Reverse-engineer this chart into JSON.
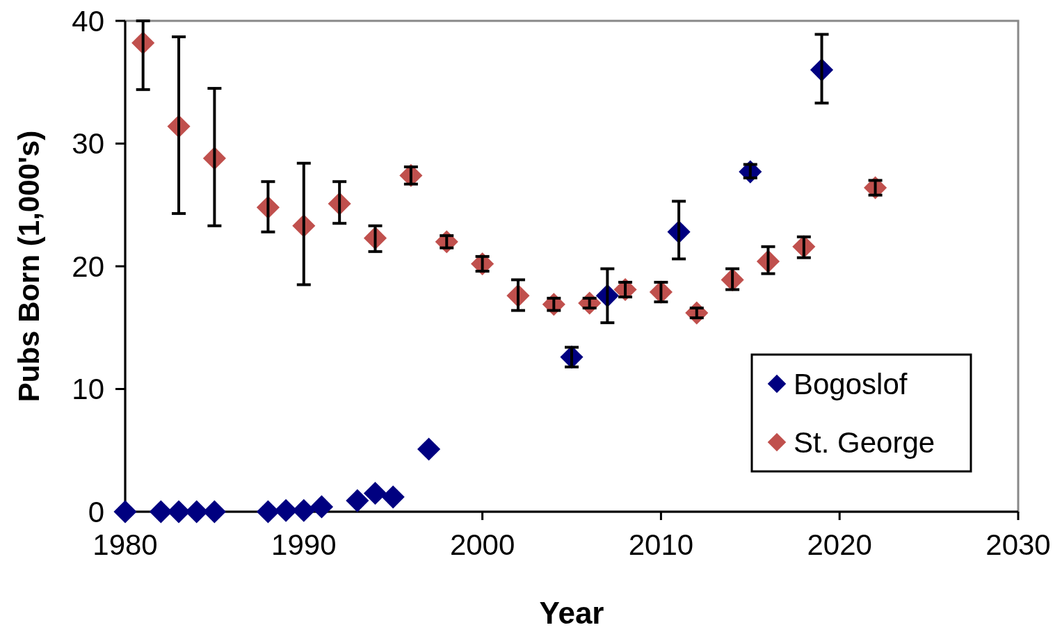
{
  "chart_data": {
    "type": "scatter",
    "xlabel": "Year",
    "ylabel": "Pubs Born (1,000's)",
    "xlim": [
      1980,
      2030
    ],
    "xticks": [
      1980,
      1990,
      2000,
      2010,
      2020,
      2030
    ],
    "ylim": [
      0,
      40
    ],
    "yticks": [
      0,
      10,
      20,
      30,
      40
    ],
    "grid": false,
    "legend": "bottom right",
    "marker": "diamond",
    "series": [
      {
        "name": "Bogoslof",
        "color": "#000080",
        "x": [
          1980,
          1982,
          1983,
          1984,
          1985,
          1988,
          1989,
          1990,
          1991,
          1993,
          1994,
          1995,
          1997,
          2005,
          2007,
          2011,
          2015,
          2019
        ],
        "values": [
          0,
          0,
          0,
          0,
          0,
          0,
          0.1,
          0.1,
          0.4,
          0.9,
          1.5,
          1.2,
          5.1,
          12.6,
          17.6,
          22.8,
          27.7,
          36.0
        ],
        "errors": [
          null,
          null,
          null,
          null,
          null,
          null,
          null,
          null,
          null,
          null,
          null,
          null,
          null,
          [
            11.8,
            13.4
          ],
          [
            15.4,
            19.8
          ],
          [
            20.6,
            25.3
          ],
          [
            27.2,
            28.3
          ],
          [
            33.3,
            38.9
          ]
        ]
      },
      {
        "name": "St. George",
        "color": "#c0504d",
        "x": [
          1981,
          1983,
          1985,
          1988,
          1990,
          1992,
          1994,
          1996,
          1998,
          2000,
          2002,
          2004,
          2006,
          2008,
          2010,
          2012,
          2014,
          2016,
          2018,
          2022
        ],
        "values": [
          38.2,
          31.4,
          28.8,
          24.8,
          23.3,
          25.1,
          22.3,
          27.4,
          22.0,
          20.2,
          17.6,
          16.9,
          17.0,
          18.1,
          17.9,
          16.2,
          18.9,
          20.4,
          21.6,
          26.4
        ],
        "errors": [
          [
            34.4,
            40
          ],
          [
            24.3,
            38.7
          ],
          [
            23.3,
            34.5
          ],
          [
            22.8,
            26.9
          ],
          [
            18.5,
            28.4
          ],
          [
            23.5,
            26.9
          ],
          [
            21.2,
            23.3
          ],
          [
            26.7,
            28.1
          ],
          [
            21.5,
            22.5
          ],
          [
            19.6,
            20.8
          ],
          [
            16.4,
            18.9
          ],
          [
            16.4,
            17.4
          ],
          [
            16.6,
            17.4
          ],
          [
            17.5,
            18.7
          ],
          [
            17.1,
            18.7
          ],
          [
            15.8,
            16.6
          ],
          [
            18.1,
            19.8
          ],
          [
            19.4,
            21.6
          ],
          [
            20.7,
            22.4
          ],
          [
            25.8,
            27.0
          ]
        ]
      }
    ]
  }
}
